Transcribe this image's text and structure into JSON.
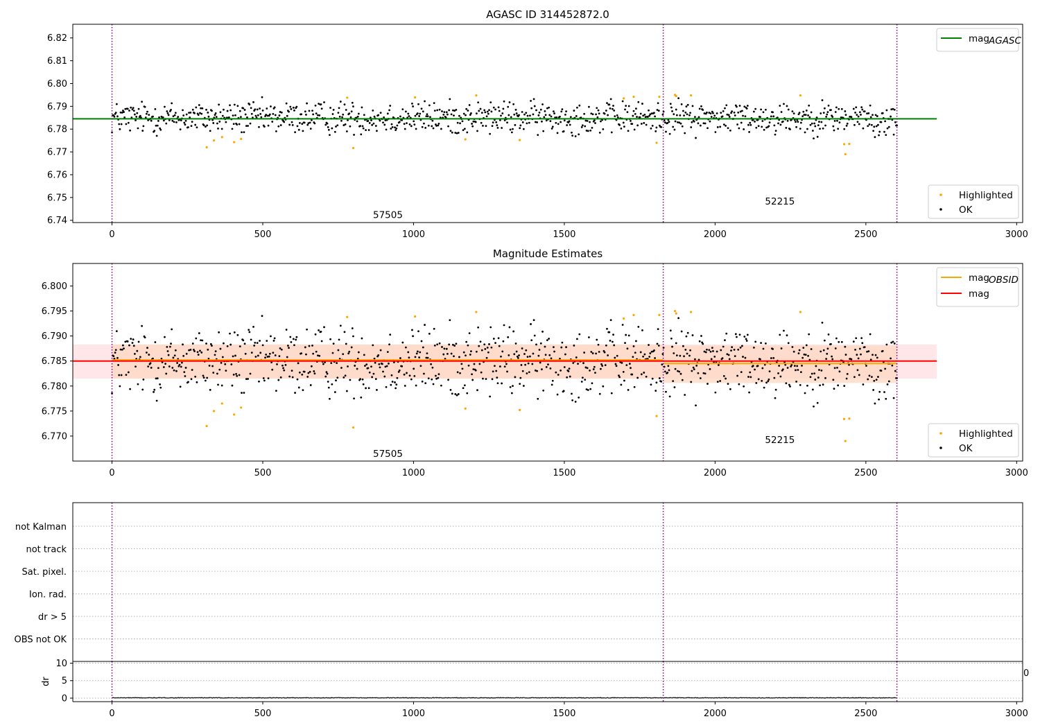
{
  "chart_data": [
    {
      "type": "scatter",
      "title": "AGASC ID 314452872.0",
      "xlim": [
        -130,
        3020
      ],
      "ylim": [
        6.739,
        6.826
      ],
      "xticks": [
        0,
        500,
        1000,
        1500,
        2000,
        2500,
        3000
      ],
      "yticks": [
        6.74,
        6.75,
        6.76,
        6.77,
        6.78,
        6.79,
        6.8,
        6.81,
        6.82
      ],
      "ytick_labels": [
        "6.74",
        "6.75",
        "6.76",
        "6.77",
        "6.78",
        "6.79",
        "6.80",
        "6.81",
        "6.82"
      ],
      "hlines": [
        {
          "name": "mag_AGASC",
          "y": 6.7845,
          "x_range": [
            -130,
            2735
          ],
          "color": "#008000"
        }
      ],
      "vlines": [
        0,
        1828,
        2603
      ],
      "annotations": [
        {
          "text": "57505",
          "x": 915,
          "y": 6.7425
        },
        {
          "text": "52215",
          "x": 2215,
          "y": 6.7485
        }
      ],
      "legends": [
        {
          "position": "top-right",
          "entries": [
            {
              "label": "mag",
              "sub": "AGASC",
              "kind": "line",
              "color": "#008000"
            }
          ]
        },
        {
          "position": "bottom-right",
          "entries": [
            {
              "label": "Highlighted",
              "kind": "marker",
              "color": "#ffa500"
            },
            {
              "label": "OK",
              "kind": "marker",
              "color": "#000000"
            }
          ]
        }
      ],
      "series": [
        {
          "name": "OK",
          "color": "#000000",
          "generated": {
            "n": 1000,
            "x_range": [
              0,
              2603
            ],
            "center": 6.785,
            "spread": 0.0035
          }
        },
        {
          "name": "Highlighted",
          "color": "#ffa500",
          "x": [
            314,
            338,
            365,
            405,
            428,
            780,
            800,
            1005,
            1172,
            1208,
            1352,
            1697,
            1730,
            1806,
            1815,
            1867,
            1871,
            1920,
            2283,
            2428,
            2432,
            2445
          ],
          "y": [
            6.772,
            6.775,
            6.7765,
            6.7743,
            6.7757,
            6.7938,
            6.7717,
            6.7939,
            6.7755,
            6.7948,
            6.7752,
            6.7935,
            6.7942,
            6.774,
            6.7942,
            6.795,
            6.7945,
            6.7948,
            6.7948,
            6.7734,
            6.769,
            6.7735
          ]
        }
      ]
    },
    {
      "type": "scatter",
      "title": "Magnitude Estimates",
      "xlim": [
        -130,
        3020
      ],
      "ylim": [
        6.765,
        6.8045
      ],
      "xticks": [
        0,
        500,
        1000,
        1500,
        2000,
        2500,
        3000
      ],
      "yticks": [
        6.77,
        6.775,
        6.78,
        6.785,
        6.79,
        6.795,
        6.8
      ],
      "ytick_labels": [
        "6.770",
        "6.775",
        "6.780",
        "6.785",
        "6.790",
        "6.795",
        "6.800"
      ],
      "hlines": [
        {
          "name": "mag_OBSID",
          "segments": [
            {
              "x": [
                0,
                1828
              ],
              "y": 6.7852
            },
            {
              "x": [
                1828,
                2603
              ],
              "y": 6.7845
            }
          ],
          "color": "#ffa500"
        },
        {
          "name": "mag",
          "y": 6.785,
          "x_range": [
            -130,
            2735
          ],
          "color": "#ff0000"
        }
      ],
      "bands": [
        {
          "x": [
            -130,
            2735
          ],
          "y": [
            6.7815,
            6.7883
          ],
          "color": "#ffdde0"
        },
        {
          "x": [
            0,
            1828
          ],
          "y": [
            6.7815,
            6.7883
          ],
          "color": "#ffd7c2"
        },
        {
          "x": [
            1828,
            2603
          ],
          "y": [
            6.7806,
            6.7881
          ],
          "color": "#ffd7c2"
        }
      ],
      "vlines": [
        0,
        1828,
        2603
      ],
      "annotations": [
        {
          "text": "57505",
          "x": 915,
          "y": 6.7665
        },
        {
          "text": "52215",
          "x": 2215,
          "y": 6.7693
        }
      ],
      "legends": [
        {
          "position": "top-right",
          "entries": [
            {
              "label": "mag",
              "sub": "OBSID",
              "kind": "line",
              "color": "#ffa500"
            },
            {
              "label": "mag",
              "kind": "line",
              "color": "#ff0000"
            }
          ]
        },
        {
          "position": "bottom-right",
          "entries": [
            {
              "label": "Highlighted",
              "kind": "marker",
              "color": "#ffa500"
            },
            {
              "label": "OK",
              "kind": "marker",
              "color": "#000000"
            }
          ]
        }
      ],
      "series": [
        {
          "name": "OK",
          "color": "#000000",
          "generated": {
            "n": 1000,
            "x_range": [
              0,
              2603
            ],
            "center": 6.785,
            "spread": 0.0035
          }
        },
        {
          "name": "Highlighted",
          "color": "#ffa500",
          "x": [
            314,
            338,
            365,
            405,
            428,
            780,
            800,
            1005,
            1172,
            1208,
            1352,
            1697,
            1730,
            1806,
            1815,
            1867,
            1871,
            1920,
            2283,
            2428,
            2432,
            2445
          ],
          "y": [
            6.772,
            6.775,
            6.7765,
            6.7743,
            6.7757,
            6.7938,
            6.7717,
            6.7939,
            6.7755,
            6.7948,
            6.7752,
            6.7935,
            6.7942,
            6.774,
            6.7942,
            6.795,
            6.7945,
            6.7948,
            6.7948,
            6.7734,
            6.769,
            6.7735
          ]
        }
      ]
    },
    {
      "type": "scatter",
      "title": "",
      "categories": [
        "not Kalman",
        "not track",
        "Sat. pixel.",
        "Ion. rad.",
        "dr > 5",
        "OBS not OK"
      ],
      "vlines": [
        0,
        1828,
        2603
      ],
      "series": []
    },
    {
      "type": "line",
      "title": "",
      "ylabel": "dr",
      "xlim": [
        -130,
        3020
      ],
      "ylim": [
        -1,
        10.5
      ],
      "xticks": [
        0,
        500,
        1000,
        1500,
        2000,
        2500,
        3000
      ],
      "yticks": [
        0,
        5,
        10
      ],
      "ytick_labels": [
        "0",
        "5",
        "10"
      ],
      "vlines": [
        0,
        1828,
        2603
      ],
      "series": [
        {
          "name": "dr",
          "color": "#000000",
          "generated": {
            "n": 1000,
            "x_range": [
              0,
              2603
            ],
            "center": 0.1,
            "spread": 0.08
          }
        }
      ]
    }
  ],
  "stray_tick_label": "0",
  "colors": {
    "axes": "#000000",
    "vline": "#800080",
    "grid": "#b0b0b0"
  }
}
